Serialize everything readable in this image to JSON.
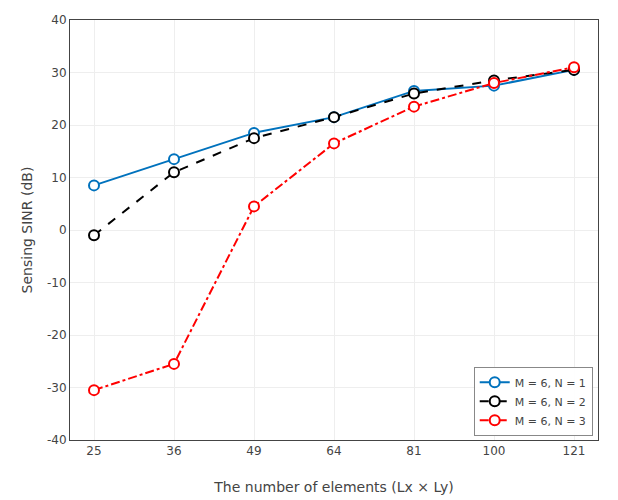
{
  "chart_data": {
    "type": "line",
    "xlabel": "The number of elements (Lx × Ly)",
    "ylabel": "Sensing SINR (dB)",
    "categories": [
      "25",
      "36",
      "49",
      "64",
      "81",
      "100",
      "121"
    ],
    "series": [
      {
        "name": "M = 6, N = 1",
        "color": "#0072BD",
        "line_style": "solid",
        "marker": "circle",
        "values": [
          8.5,
          13.5,
          18.5,
          21.5,
          26.5,
          27.5,
          30.5
        ]
      },
      {
        "name": "M = 6, N = 2",
        "color": "#000000",
        "line_style": "dash",
        "marker": "circle",
        "values": [
          -1.0,
          11.0,
          17.5,
          21.5,
          26.0,
          28.5,
          30.5
        ]
      },
      {
        "name": "M = 6, N = 3",
        "color": "#FF0000",
        "line_style": "dashdot",
        "marker": "circle",
        "values": [
          -30.5,
          -25.5,
          4.5,
          16.5,
          23.5,
          28.0,
          31.0
        ]
      }
    ],
    "ylim": [
      -40,
      40
    ],
    "yticks": [
      -40,
      -30,
      -20,
      -10,
      0,
      10,
      20,
      30,
      40
    ],
    "grid": true,
    "legend": "lower right"
  }
}
